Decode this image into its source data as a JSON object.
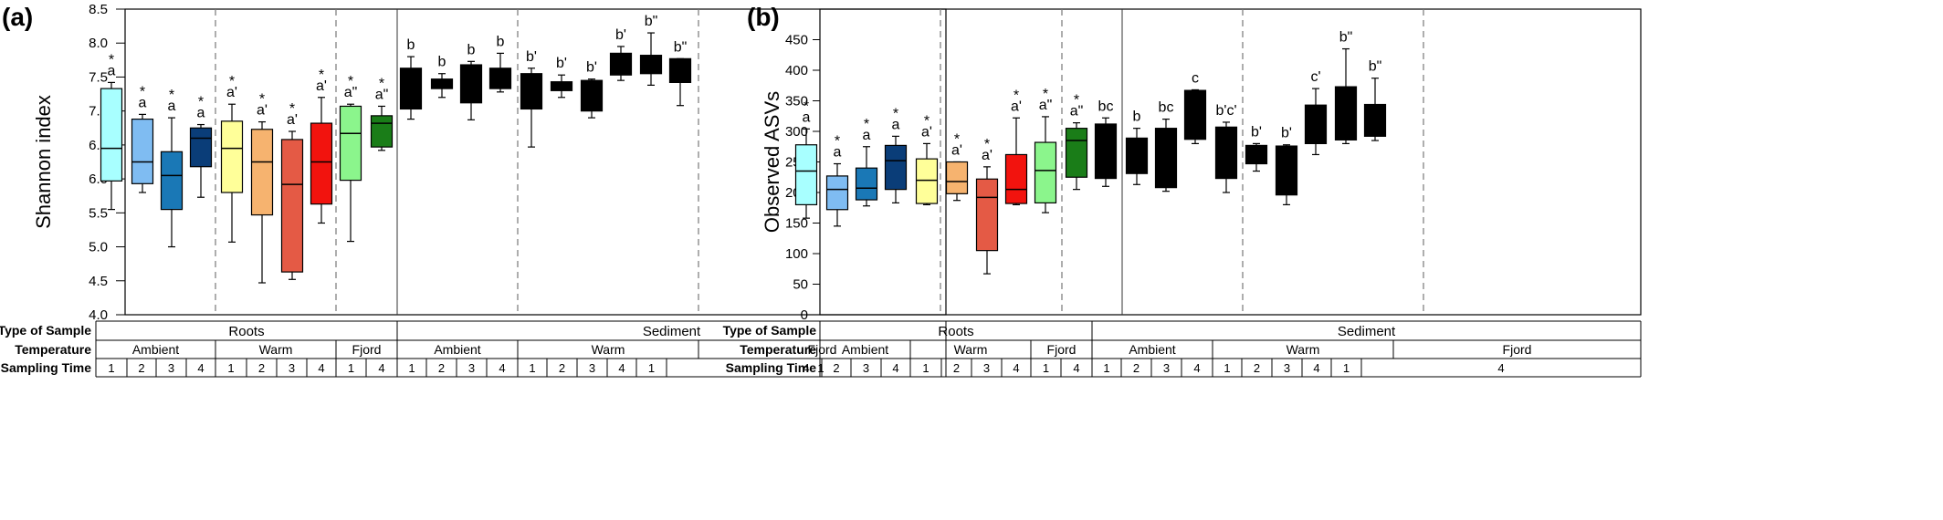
{
  "colors": [
    "#a8ffff",
    "#7fbcf2",
    "#1a78b6",
    "#0a3d78",
    "#ffff99",
    "#f6b36f",
    "#e45a45",
    "#f2130e",
    "#8bf58c",
    "#1a7d18"
  ],
  "chart_data": [
    {
      "type": "box",
      "panel_label": "(a)",
      "ylabel": "Shannon index",
      "ylim": [
        4.0,
        8.5
      ],
      "yticks": [
        "4.0",
        "4.5",
        "5.0",
        "5.5",
        "6.0",
        "6.5",
        "7.0",
        "7.5",
        "8.0",
        "8.5"
      ],
      "boxes": [
        {
          "min": 5.55,
          "q1": 5.97,
          "median": 6.45,
          "q3": 7.33,
          "max": 7.42,
          "label": "a",
          "star": true
        },
        {
          "min": 5.8,
          "q1": 5.93,
          "median": 6.25,
          "q3": 6.88,
          "max": 6.95,
          "label": "a",
          "star": true
        },
        {
          "min": 5.0,
          "q1": 5.55,
          "median": 6.05,
          "q3": 6.4,
          "max": 6.9,
          "label": "a",
          "star": true
        },
        {
          "min": 5.73,
          "q1": 6.18,
          "median": 6.6,
          "q3": 6.75,
          "max": 6.8,
          "label": "a",
          "star": true
        },
        {
          "min": 5.07,
          "q1": 5.8,
          "median": 6.45,
          "q3": 6.85,
          "max": 7.1,
          "label": "a'",
          "star": true
        },
        {
          "min": 4.47,
          "q1": 5.47,
          "median": 6.25,
          "q3": 6.73,
          "max": 6.84,
          "label": "a'",
          "star": true
        },
        {
          "min": 4.52,
          "q1": 4.63,
          "median": 5.92,
          "q3": 6.58,
          "max": 6.7,
          "label": "a'",
          "star": true
        },
        {
          "min": 5.35,
          "q1": 5.63,
          "median": 6.25,
          "q3": 6.82,
          "max": 7.2,
          "label": "a'",
          "star": true
        },
        {
          "min": 5.08,
          "q1": 5.98,
          "median": 6.67,
          "q3": 7.07,
          "max": 7.1,
          "label": "a\"",
          "star": true
        },
        {
          "min": 6.42,
          "q1": 6.47,
          "median": 6.82,
          "q3": 6.93,
          "max": 7.07,
          "label": "a\"",
          "star": true
        },
        {
          "min": 6.88,
          "q1": 7.03,
          "median": 7.57,
          "q3": 7.63,
          "max": 7.8,
          "label": "b",
          "star": false
        },
        {
          "min": 7.2,
          "q1": 7.33,
          "median": 7.4,
          "q3": 7.47,
          "max": 7.55,
          "label": "b",
          "star": false
        },
        {
          "min": 6.87,
          "q1": 7.12,
          "median": 7.47,
          "q3": 7.68,
          "max": 7.73,
          "label": "b",
          "star": false
        },
        {
          "min": 7.28,
          "q1": 7.33,
          "median": 7.45,
          "q3": 7.63,
          "max": 7.85,
          "label": "b",
          "star": false
        },
        {
          "min": 6.47,
          "q1": 7.03,
          "median": 7.5,
          "q3": 7.55,
          "max": 7.63,
          "label": "b'",
          "star": false
        },
        {
          "min": 7.2,
          "q1": 7.3,
          "median": 7.35,
          "q3": 7.43,
          "max": 7.53,
          "label": "b'",
          "star": false
        },
        {
          "min": 6.9,
          "q1": 7.0,
          "median": 7.2,
          "q3": 7.45,
          "max": 7.47,
          "label": "b'",
          "star": false
        },
        {
          "min": 7.45,
          "q1": 7.53,
          "median": 7.63,
          "q3": 7.85,
          "max": 7.95,
          "label": "b'",
          "star": false
        },
        {
          "min": 7.38,
          "q1": 7.55,
          "median": 7.65,
          "q3": 7.82,
          "max": 8.15,
          "label": "b\"",
          "star": false
        },
        {
          "min": 7.08,
          "q1": 7.42,
          "median": 7.72,
          "q3": 7.77,
          "max": 7.77,
          "label": "b\"",
          "star": false
        }
      ]
    },
    {
      "type": "box",
      "panel_label": "(b)",
      "ylabel": "Observed ASVs",
      "ylim": [
        0,
        500
      ],
      "yticks": [
        "0",
        "50",
        "100",
        "150",
        "200",
        "250",
        "300",
        "350",
        "400",
        "450"
      ],
      "boxes": [
        {
          "min": 158,
          "q1": 180,
          "median": 235,
          "q3": 278,
          "max": 304,
          "label": "a",
          "star": true
        },
        {
          "min": 145,
          "q1": 172,
          "median": 205,
          "q3": 227,
          "max": 247,
          "label": "a",
          "star": true
        },
        {
          "min": 178,
          "q1": 188,
          "median": 207,
          "q3": 240,
          "max": 275,
          "label": "a",
          "star": true
        },
        {
          "min": 183,
          "q1": 205,
          "median": 252,
          "q3": 277,
          "max": 292,
          "label": "a",
          "star": true
        },
        {
          "min": 180,
          "q1": 182,
          "median": 220,
          "q3": 255,
          "max": 280,
          "label": "a'",
          "star": true
        },
        {
          "min": 187,
          "q1": 198,
          "median": 218,
          "q3": 250,
          "max": 250,
          "label": "a'",
          "star": true
        },
        {
          "min": 67,
          "q1": 105,
          "median": 192,
          "q3": 222,
          "max": 242,
          "label": "a'",
          "star": true
        },
        {
          "min": 180,
          "q1": 182,
          "median": 205,
          "q3": 262,
          "max": 322,
          "label": "a'",
          "star": true
        },
        {
          "min": 167,
          "q1": 183,
          "median": 236,
          "q3": 282,
          "max": 324,
          "label": "a\"",
          "star": true
        },
        {
          "min": 205,
          "q1": 225,
          "median": 285,
          "q3": 305,
          "max": 314,
          "label": "a\"",
          "star": true
        },
        {
          "min": 210,
          "q1": 223,
          "median": 300,
          "q3": 312,
          "max": 322,
          "label": "bc",
          "star": false
        },
        {
          "min": 213,
          "q1": 231,
          "median": 272,
          "q3": 289,
          "max": 305,
          "label": "b",
          "star": false
        },
        {
          "min": 202,
          "q1": 208,
          "median": 270,
          "q3": 305,
          "max": 320,
          "label": "bc",
          "star": false
        },
        {
          "min": 280,
          "q1": 287,
          "median": 303,
          "q3": 367,
          "max": 368,
          "label": "c",
          "star": false
        },
        {
          "min": 200,
          "q1": 223,
          "median": 282,
          "q3": 307,
          "max": 315,
          "label": "b'c'",
          "star": false
        },
        {
          "min": 235,
          "q1": 247,
          "median": 270,
          "q3": 277,
          "max": 280,
          "label": "b'",
          "star": false
        },
        {
          "min": 180,
          "q1": 196,
          "median": 215,
          "q3": 276,
          "max": 278,
          "label": "b'",
          "star": false
        },
        {
          "min": 262,
          "q1": 280,
          "median": 303,
          "q3": 343,
          "max": 370,
          "label": "c'",
          "star": false
        },
        {
          "min": 280,
          "q1": 286,
          "median": 308,
          "q3": 373,
          "max": 435,
          "label": "b\"",
          "star": false
        },
        {
          "min": 285,
          "q1": 292,
          "median": 318,
          "q3": 344,
          "max": 387,
          "label": "b\"",
          "star": false
        }
      ]
    }
  ],
  "table": {
    "row_labels": [
      "Type of Sample",
      "Temperature",
      "Sampling Time"
    ],
    "types": [
      "Roots",
      "Sediment"
    ],
    "temperatures": [
      "Ambient",
      "Warm",
      "Fjord",
      "Ambient",
      "Warm",
      "Fjord"
    ],
    "times": [
      "1",
      "2",
      "3",
      "4",
      "1",
      "2",
      "3",
      "4",
      "1",
      "4",
      "1",
      "2",
      "3",
      "4",
      "1",
      "2",
      "3",
      "4",
      "1",
      "4"
    ]
  }
}
